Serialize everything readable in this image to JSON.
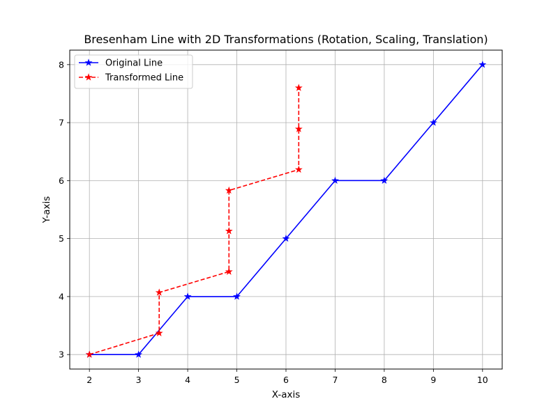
{
  "chart_data": {
    "type": "line",
    "title": "Bresenham Line with 2D Transformations (Rotation, Scaling, Translation)",
    "xlabel": "X-axis",
    "ylabel": "Y-axis",
    "xlim": [
      1.6,
      10.4
    ],
    "ylim": [
      2.75,
      8.25
    ],
    "xticks": [
      2,
      3,
      4,
      5,
      6,
      7,
      8,
      9,
      10
    ],
    "yticks": [
      3,
      4,
      5,
      6,
      7,
      8
    ],
    "grid": true,
    "legend_position": "top-left",
    "series": [
      {
        "name": "Original Line",
        "color": "#0000ff",
        "linestyle": "solid",
        "marker": "star",
        "x": [
          2,
          3,
          4,
          5,
          6,
          7,
          8,
          9,
          10
        ],
        "y": [
          3,
          3,
          4,
          4,
          5,
          6,
          6,
          7,
          8
        ]
      },
      {
        "name": "Transformed Line",
        "color": "#ff0000",
        "linestyle": "dashed",
        "marker": "star",
        "x": [
          2,
          3.42,
          3.42,
          4.84,
          4.84,
          4.84,
          6.26,
          6.26,
          6.26
        ],
        "y": [
          3,
          3.37,
          4.07,
          4.43,
          5.13,
          5.83,
          6.19,
          6.89,
          7.6
        ]
      }
    ]
  }
}
